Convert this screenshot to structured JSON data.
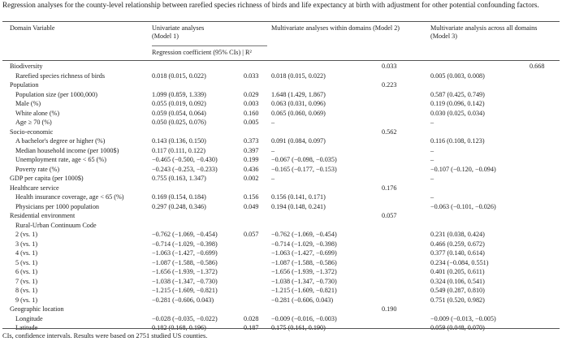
{
  "caption": "Regression analyses for the county-level relationship between rarefied species richness of birds and life expectancy at birth with adjustment for other potential confounding factors.",
  "header": {
    "domain_variable": "Domain Variable",
    "model1_title": "Univariate analyses",
    "model1_sub": "(Model 1)",
    "model2_title": "Multivariate analyses within domains (Model 2)",
    "model3_title": "Multivariate analysis across all domains",
    "model3_sub": "(Model 3)",
    "coef_label": "Regression coefficient (95% CIs) | R²"
  },
  "rows": [
    {
      "label": "Biodiversity",
      "m1": "",
      "r1": "",
      "m2": "",
      "r2": "0.033",
      "m3": "",
      "r3": "0.668"
    },
    {
      "label": "Rarefied species richness of birds",
      "indent": true,
      "m1": "0.018 (0.015, 0.022)",
      "r1": "0.033",
      "m2": "0.018 (0.015, 0.022)",
      "r2": "",
      "m3": "0.005 (0.003, 0.008)",
      "r3": ""
    },
    {
      "label": "Population",
      "m1": "",
      "r1": "",
      "m2": "",
      "r2": "0.223",
      "m3": "",
      "r3": ""
    },
    {
      "label": "Population size (per 1000,000)",
      "indent": true,
      "m1": "1.099 (0.859, 1.339)",
      "r1": "0.029",
      "m2": "1.648 (1.429, 1.867)",
      "r2": "",
      "m3": "0.587 (0.425, 0.749)",
      "r3": ""
    },
    {
      "label": "Male (%)",
      "indent": true,
      "m1": "0.055 (0.019, 0.092)",
      "r1": "0.003",
      "m2": "0.063 (0.031, 0.096)",
      "r2": "",
      "m3": "0.119 (0.096, 0.142)",
      "r3": ""
    },
    {
      "label": "White alone (%)",
      "indent": true,
      "m1": "0.059 (0.054, 0.064)",
      "r1": "0.160",
      "m2": "0.065 (0.060, 0.069)",
      "r2": "",
      "m3": "0.030 (0.025, 0.034)",
      "r3": ""
    },
    {
      "label": "Age ≥ 70 (%)",
      "indent": true,
      "m1": "0.050 (0.025, 0.076)",
      "r1": "0.005",
      "m2": "–",
      "r2": "",
      "m3": "–",
      "r3": ""
    },
    {
      "label": "Socio-economic",
      "m1": "",
      "r1": "",
      "m2": "",
      "r2": "0.562",
      "m3": "",
      "r3": ""
    },
    {
      "label": "A bachelor's degree or higher (%)",
      "indent": true,
      "m1": "0.143 (0.136, 0.150)",
      "r1": "0.373",
      "m2": "0.091 (0.084, 0.097)",
      "r2": "",
      "m3": "0.116 (0.108, 0.123)",
      "r3": ""
    },
    {
      "label": "Median household income (per 1000$)",
      "indent": true,
      "m1": "0.117 (0.111, 0.122)",
      "r1": "0.397",
      "m2": "–",
      "r2": "",
      "m3": "–",
      "r3": ""
    },
    {
      "label": "Unemployment rate, age < 65 (%)",
      "indent": true,
      "m1": "−0.465 (−0.500, −0.430)",
      "r1": "0.199",
      "m2": "−0.067 (−0.098, −0.035)",
      "r2": "",
      "m3": "–",
      "r3": ""
    },
    {
      "label": "Poverty rate (%)",
      "indent": true,
      "m1": "−0.243 (−0.253, −0.233)",
      "r1": "0.436",
      "m2": "−0.165 (−0.177, −0.153)",
      "r2": "",
      "m3": "−0.107 (−0.120, −0.094)",
      "r3": ""
    },
    {
      "label": "GDP per capita (per 1000$)",
      "m1": "0.755 (0.163, 1.347)",
      "r1": "0.002",
      "m2": "–",
      "r2": "",
      "m3": "–",
      "r3": ""
    },
    {
      "label": "Healthcare service",
      "m1": "",
      "r1": "",
      "m2": "",
      "r2": "0.176",
      "m3": "",
      "r3": ""
    },
    {
      "label": "Health insurance coverage, age < 65 (%)",
      "indent": true,
      "m1": "0.169 (0.154, 0.184)",
      "r1": "0.156",
      "m2": "0.156 (0.141, 0.171)",
      "r2": "",
      "m3": "–",
      "r3": ""
    },
    {
      "label": "Physicians per 1000 population",
      "indent": true,
      "m1": "0.297 (0.248, 0.346)",
      "r1": "0.049",
      "m2": "0.194 (0.148, 0.241)",
      "r2": "",
      "m3": "−0.063 (−0.101, −0.026)",
      "r3": ""
    },
    {
      "label": "Residential environment",
      "m1": "",
      "r1": "",
      "m2": "",
      "r2": "0.057",
      "m3": "",
      "r3": ""
    },
    {
      "label": "Rural-Urban Continuum Code",
      "indent": true,
      "m1": "",
      "r1": "",
      "m2": "",
      "r2": "",
      "m3": "",
      "r3": ""
    },
    {
      "label": "2 (vs. 1)",
      "indent": true,
      "m1": "−0.762 (−1.069, −0.454)",
      "r1": "0.057",
      "m2": "−0.762 (−1.069, −0.454)",
      "r2": "",
      "m3": "0.231 (0.038, 0.424)",
      "r3": ""
    },
    {
      "label": "3 (vs. 1)",
      "indent": true,
      "m1": "−0.714 (−1.029, −0.398)",
      "r1": "",
      "m2": "−0.714 (−1.029, −0.398)",
      "r2": "",
      "m3": "0.466 (0.259, 0.672)",
      "r3": ""
    },
    {
      "label": "4 (vs. 1)",
      "indent": true,
      "m1": "−1.063 (−1.427, −0.699)",
      "r1": "",
      "m2": "−1.063 (−1.427, −0.699)",
      "r2": "",
      "m3": "0.377 (0.140, 0.614)",
      "r3": ""
    },
    {
      "label": "5 (vs. 1)",
      "indent": true,
      "m1": "−1.087 (−1.588, −0.586)",
      "r1": "",
      "m2": "−1.087 (−1.588, −0.586)",
      "r2": "",
      "m3": "0.234 (−0.084, 0.551)",
      "r3": ""
    },
    {
      "label": "6 (vs. 1)",
      "indent": true,
      "m1": "−1.656 (−1.939, −1.372)",
      "r1": "",
      "m2": "−1.656 (−1.939, −1.372)",
      "r2": "",
      "m3": "0.401 (0.205, 0.611)",
      "r3": ""
    },
    {
      "label": "7 (vs. 1)",
      "indent": true,
      "m1": "−1.038 (−1.347, −0.730)",
      "r1": "",
      "m2": "−1.038 (−1.347, −0.730)",
      "r2": "",
      "m3": "0.324 (0.106, 0.541)",
      "r3": ""
    },
    {
      "label": "8 (vs. 1)",
      "indent": true,
      "m1": "−1.215 (−1.609, −0.821)",
      "r1": "",
      "m2": "−1.215 (−1.609, −0.821)",
      "r2": "",
      "m3": "0.549 (0.287, 0.810)",
      "r3": ""
    },
    {
      "label": "9 (vs. 1)",
      "indent": true,
      "m1": "−0.281 (−0.606, 0.043)",
      "r1": "",
      "m2": "−0.281 (−0.606, 0.043)",
      "r2": "",
      "m3": "0.751 (0.520, 0.982)",
      "r3": ""
    },
    {
      "label": "Geographic location",
      "m1": "",
      "r1": "",
      "m2": "",
      "r2": "0.190",
      "m3": "",
      "r3": ""
    },
    {
      "label": "Longitude",
      "indent": true,
      "m1": "−0.028 (−0.035, −0.022)",
      "r1": "0.028",
      "m2": "−0.009 (−0.016, −0.003)",
      "r2": "",
      "m3": "−0.009 (−0.013, −0.005)",
      "r3": ""
    },
    {
      "label": "Latitude",
      "indent": true,
      "m1": "0.182 (0.168, 0.196)",
      "r1": "0.187",
      "m2": "0.175 (0.161, 0.190)",
      "r2": "",
      "m3": "0.059 (0.048, 0.070)",
      "r3": ""
    }
  ],
  "footnote": "CIs, confidence intervals. Results were based on 2751 studied US counties."
}
